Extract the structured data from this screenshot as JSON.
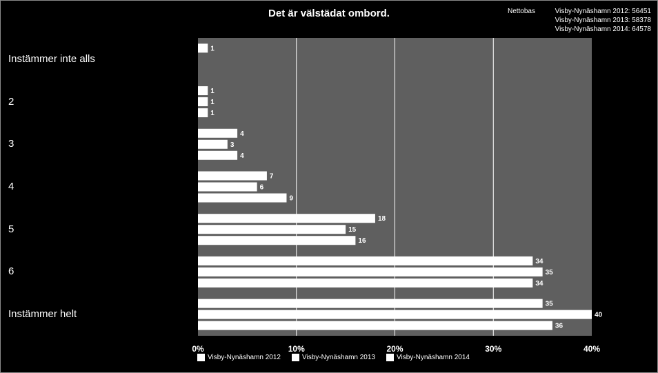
{
  "chart_data": {
    "type": "bar",
    "orientation": "horizontal",
    "title": "Det är välstädat ombord.",
    "categories": [
      "Instämmer inte alls",
      "2",
      "3",
      "4",
      "5",
      "6",
      "Instämmer helt"
    ],
    "series": [
      {
        "name": "Visby-Nynäshamn 2012",
        "values": [
          1,
          1,
          4,
          7,
          18,
          34,
          35
        ]
      },
      {
        "name": "Visby-Nynäshamn 2013",
        "values": [
          null,
          1,
          3,
          6,
          15,
          35,
          40
        ]
      },
      {
        "name": "Visby-Nynäshamn 2014",
        "values": [
          null,
          1,
          4,
          9,
          16,
          34,
          36
        ]
      }
    ],
    "xlim": [
      0,
      40
    ],
    "xticks": [
      "0%",
      "10%",
      "20%",
      "30%",
      "40%"
    ],
    "grid": true,
    "legend_position": "bottom",
    "colors": {
      "background": "#000000",
      "plot_area": "#5f5f5f",
      "bars": "#ffffff",
      "grid": "#ffffff"
    }
  },
  "nettobas": {
    "label": "Nettobas",
    "rows": [
      "Visby-Nynäshamn 2012: 56451",
      "Visby-Nynäshamn 2013: 58378",
      "Visby-Nynäshamn 2014: 64578"
    ]
  }
}
